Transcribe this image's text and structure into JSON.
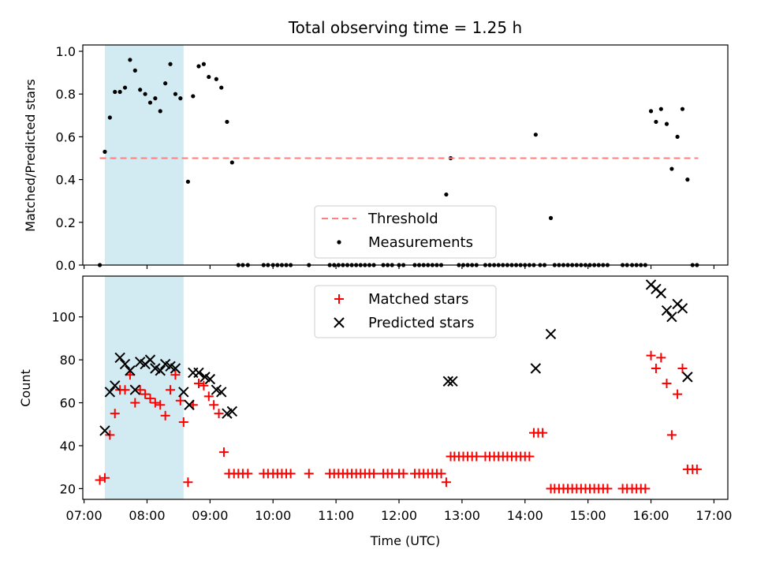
{
  "chart_data": {
    "type": "scatter",
    "title": "Total observing time = 1.25 h",
    "xlabel": "Time (UTC)",
    "x_ticks": [
      "07:00",
      "08:00",
      "09:00",
      "10:00",
      "11:00",
      "12:00",
      "13:00",
      "14:00",
      "15:00",
      "16:00",
      "17:00"
    ],
    "xlim": [
      6.98,
      17.22
    ],
    "highlight_span": {
      "x": [
        7.33,
        8.58
      ],
      "color": "#add8e6"
    },
    "top": {
      "ylabel": "Matched/Predicted stars",
      "ylim": [
        0,
        1.0
      ],
      "y_ticks": [
        "0.0",
        "0.2",
        "0.4",
        "0.6",
        "0.8",
        "1.0"
      ],
      "threshold": {
        "name": "Threshold",
        "value": 0.5,
        "x": [
          7.25,
          16.75
        ],
        "color": "#ff7f7f"
      },
      "measurements": {
        "name": "Measurements",
        "color": "#000000",
        "points": [
          [
            7.25,
            0.0
          ],
          [
            7.33,
            0.53
          ],
          [
            7.41,
            0.69
          ],
          [
            7.49,
            0.81
          ],
          [
            7.57,
            0.81
          ],
          [
            7.65,
            0.83
          ],
          [
            7.73,
            0.96
          ],
          [
            7.81,
            0.91
          ],
          [
            7.89,
            0.82
          ],
          [
            7.97,
            0.8
          ],
          [
            8.05,
            0.76
          ],
          [
            8.13,
            0.78
          ],
          [
            8.21,
            0.72
          ],
          [
            8.29,
            0.85
          ],
          [
            8.37,
            0.94
          ],
          [
            8.45,
            0.8
          ],
          [
            8.53,
            0.78
          ],
          [
            8.65,
            0.39
          ],
          [
            8.73,
            0.79
          ],
          [
            8.82,
            0.93
          ],
          [
            8.9,
            0.94
          ],
          [
            8.98,
            0.88
          ],
          [
            9.1,
            0.87
          ],
          [
            9.18,
            0.83
          ],
          [
            9.27,
            0.67
          ],
          [
            9.35,
            0.48
          ],
          [
            9.45,
            0.0
          ],
          [
            9.52,
            0.0
          ],
          [
            9.6,
            0.0
          ],
          [
            9.85,
            0.0
          ],
          [
            9.92,
            0.0
          ],
          [
            10.0,
            0.0
          ],
          [
            10.07,
            0.0
          ],
          [
            10.14,
            0.0
          ],
          [
            10.21,
            0.0
          ],
          [
            10.28,
            0.0
          ],
          [
            10.57,
            0.0
          ],
          [
            10.9,
            0.0
          ],
          [
            10.97,
            0.0
          ],
          [
            11.04,
            0.0
          ],
          [
            11.11,
            0.0
          ],
          [
            11.18,
            0.0
          ],
          [
            11.25,
            0.0
          ],
          [
            11.32,
            0.0
          ],
          [
            11.39,
            0.0
          ],
          [
            11.46,
            0.0
          ],
          [
            11.53,
            0.0
          ],
          [
            11.6,
            0.0
          ],
          [
            11.75,
            0.0
          ],
          [
            11.82,
            0.0
          ],
          [
            11.89,
            0.0
          ],
          [
            12.0,
            0.0
          ],
          [
            12.07,
            0.0
          ],
          [
            12.25,
            0.0
          ],
          [
            12.32,
            0.0
          ],
          [
            12.39,
            0.0
          ],
          [
            12.46,
            0.0
          ],
          [
            12.53,
            0.0
          ],
          [
            12.6,
            0.0
          ],
          [
            12.67,
            0.0
          ],
          [
            12.75,
            0.33
          ],
          [
            12.82,
            0.5
          ],
          [
            12.95,
            0.0
          ],
          [
            13.02,
            0.0
          ],
          [
            13.09,
            0.0
          ],
          [
            13.16,
            0.0
          ],
          [
            13.23,
            0.0
          ],
          [
            13.37,
            0.0
          ],
          [
            13.44,
            0.0
          ],
          [
            13.51,
            0.0
          ],
          [
            13.58,
            0.0
          ],
          [
            13.65,
            0.0
          ],
          [
            13.72,
            0.0
          ],
          [
            13.79,
            0.0
          ],
          [
            13.86,
            0.0
          ],
          [
            13.93,
            0.0
          ],
          [
            14.0,
            0.0
          ],
          [
            14.07,
            0.0
          ],
          [
            14.14,
            0.0
          ],
          [
            14.17,
            0.61
          ],
          [
            14.24,
            0.0
          ],
          [
            14.31,
            0.0
          ],
          [
            14.41,
            0.22
          ],
          [
            14.47,
            0.0
          ],
          [
            14.54,
            0.0
          ],
          [
            14.61,
            0.0
          ],
          [
            14.68,
            0.0
          ],
          [
            14.75,
            0.0
          ],
          [
            14.82,
            0.0
          ],
          [
            14.89,
            0.0
          ],
          [
            14.96,
            0.0
          ],
          [
            15.03,
            0.0
          ],
          [
            15.1,
            0.0
          ],
          [
            15.17,
            0.0
          ],
          [
            15.24,
            0.0
          ],
          [
            15.31,
            0.0
          ],
          [
            15.55,
            0.0
          ],
          [
            15.62,
            0.0
          ],
          [
            15.7,
            0.0
          ],
          [
            15.77,
            0.0
          ],
          [
            15.84,
            0.0
          ],
          [
            15.91,
            0.0
          ],
          [
            16.0,
            0.72
          ],
          [
            16.08,
            0.67
          ],
          [
            16.16,
            0.73
          ],
          [
            16.25,
            0.66
          ],
          [
            16.33,
            0.45
          ],
          [
            16.42,
            0.6
          ],
          [
            16.5,
            0.73
          ],
          [
            16.58,
            0.4
          ],
          [
            16.66,
            0.0
          ],
          [
            16.73,
            0.0
          ]
        ]
      }
    },
    "bottom": {
      "ylabel": "Count",
      "ylim": [
        15,
        119
      ],
      "y_ticks": [
        "20",
        "40",
        "60",
        "80",
        "100"
      ],
      "series": [
        {
          "name": "Matched stars",
          "marker": "plus",
          "color": "#ff0000",
          "points": [
            [
              7.25,
              24
            ],
            [
              7.33,
              25
            ],
            [
              7.41,
              45
            ],
            [
              7.49,
              55
            ],
            [
              7.57,
              66
            ],
            [
              7.65,
              66
            ],
            [
              7.73,
              73
            ],
            [
              7.81,
              60
            ],
            [
              7.89,
              66
            ],
            [
              7.97,
              64
            ],
            [
              8.05,
              62
            ],
            [
              8.13,
              60
            ],
            [
              8.21,
              59
            ],
            [
              8.29,
              54
            ],
            [
              8.37,
              66
            ],
            [
              8.45,
              73
            ],
            [
              8.53,
              61
            ],
            [
              8.58,
              51
            ],
            [
              8.65,
              23
            ],
            [
              8.73,
              59
            ],
            [
              8.82,
              69
            ],
            [
              8.9,
              68
            ],
            [
              8.98,
              63
            ],
            [
              9.06,
              59
            ],
            [
              9.14,
              55
            ],
            [
              9.22,
              37
            ],
            [
              9.3,
              27
            ],
            [
              9.38,
              27
            ],
            [
              9.45,
              27
            ],
            [
              9.52,
              27
            ],
            [
              9.6,
              27
            ],
            [
              9.85,
              27
            ],
            [
              9.92,
              27
            ],
            [
              10.0,
              27
            ],
            [
              10.07,
              27
            ],
            [
              10.14,
              27
            ],
            [
              10.21,
              27
            ],
            [
              10.28,
              27
            ],
            [
              10.57,
              27
            ],
            [
              10.9,
              27
            ],
            [
              10.97,
              27
            ],
            [
              11.04,
              27
            ],
            [
              11.11,
              27
            ],
            [
              11.18,
              27
            ],
            [
              11.25,
              27
            ],
            [
              11.32,
              27
            ],
            [
              11.39,
              27
            ],
            [
              11.46,
              27
            ],
            [
              11.53,
              27
            ],
            [
              11.6,
              27
            ],
            [
              11.75,
              27
            ],
            [
              11.82,
              27
            ],
            [
              11.89,
              27
            ],
            [
              12.0,
              27
            ],
            [
              12.07,
              27
            ],
            [
              12.25,
              27
            ],
            [
              12.32,
              27
            ],
            [
              12.39,
              27
            ],
            [
              12.46,
              27
            ],
            [
              12.53,
              27
            ],
            [
              12.6,
              27
            ],
            [
              12.67,
              27
            ],
            [
              12.75,
              23
            ],
            [
              12.82,
              35
            ],
            [
              12.88,
              35
            ],
            [
              12.95,
              35
            ],
            [
              13.02,
              35
            ],
            [
              13.09,
              35
            ],
            [
              13.16,
              35
            ],
            [
              13.23,
              35
            ],
            [
              13.37,
              35
            ],
            [
              13.44,
              35
            ],
            [
              13.51,
              35
            ],
            [
              13.58,
              35
            ],
            [
              13.65,
              35
            ],
            [
              13.72,
              35
            ],
            [
              13.79,
              35
            ],
            [
              13.86,
              35
            ],
            [
              13.93,
              35
            ],
            [
              14.0,
              35
            ],
            [
              14.07,
              35
            ],
            [
              14.14,
              46
            ],
            [
              14.21,
              46
            ],
            [
              14.28,
              46
            ],
            [
              14.41,
              20
            ],
            [
              14.47,
              20
            ],
            [
              14.54,
              20
            ],
            [
              14.61,
              20
            ],
            [
              14.68,
              20
            ],
            [
              14.75,
              20
            ],
            [
              14.82,
              20
            ],
            [
              14.89,
              20
            ],
            [
              14.96,
              20
            ],
            [
              15.03,
              20
            ],
            [
              15.1,
              20
            ],
            [
              15.17,
              20
            ],
            [
              15.24,
              20
            ],
            [
              15.31,
              20
            ],
            [
              15.55,
              20
            ],
            [
              15.62,
              20
            ],
            [
              15.7,
              20
            ],
            [
              15.77,
              20
            ],
            [
              15.84,
              20
            ],
            [
              15.91,
              20
            ],
            [
              16.0,
              82
            ],
            [
              16.08,
              76
            ],
            [
              16.16,
              81
            ],
            [
              16.25,
              69
            ],
            [
              16.33,
              45
            ],
            [
              16.42,
              64
            ],
            [
              16.5,
              76
            ],
            [
              16.58,
              29
            ],
            [
              16.66,
              29
            ],
            [
              16.73,
              29
            ]
          ]
        },
        {
          "name": "Predicted stars",
          "marker": "x",
          "color": "#000000",
          "points": [
            [
              7.33,
              47
            ],
            [
              7.41,
              65
            ],
            [
              7.49,
              68
            ],
            [
              7.57,
              81
            ],
            [
              7.65,
              78
            ],
            [
              7.73,
              75
            ],
            [
              7.81,
              66
            ],
            [
              7.89,
              79
            ],
            [
              7.97,
              78
            ],
            [
              8.05,
              80
            ],
            [
              8.13,
              76
            ],
            [
              8.21,
              75
            ],
            [
              8.29,
              78
            ],
            [
              8.37,
              77
            ],
            [
              8.45,
              76
            ],
            [
              8.58,
              65
            ],
            [
              8.67,
              59
            ],
            [
              8.73,
              74
            ],
            [
              8.82,
              74
            ],
            [
              8.92,
              72
            ],
            [
              9.0,
              71
            ],
            [
              9.1,
              66
            ],
            [
              9.18,
              65
            ],
            [
              9.27,
              55
            ],
            [
              9.35,
              56
            ],
            [
              12.78,
              70
            ],
            [
              12.85,
              70
            ],
            [
              14.17,
              76
            ],
            [
              14.41,
              92
            ],
            [
              16.0,
              115
            ],
            [
              16.08,
              113
            ],
            [
              16.16,
              111
            ],
            [
              16.25,
              103
            ],
            [
              16.33,
              100
            ],
            [
              16.42,
              106
            ],
            [
              16.5,
              104
            ],
            [
              16.58,
              72
            ]
          ]
        }
      ]
    }
  }
}
